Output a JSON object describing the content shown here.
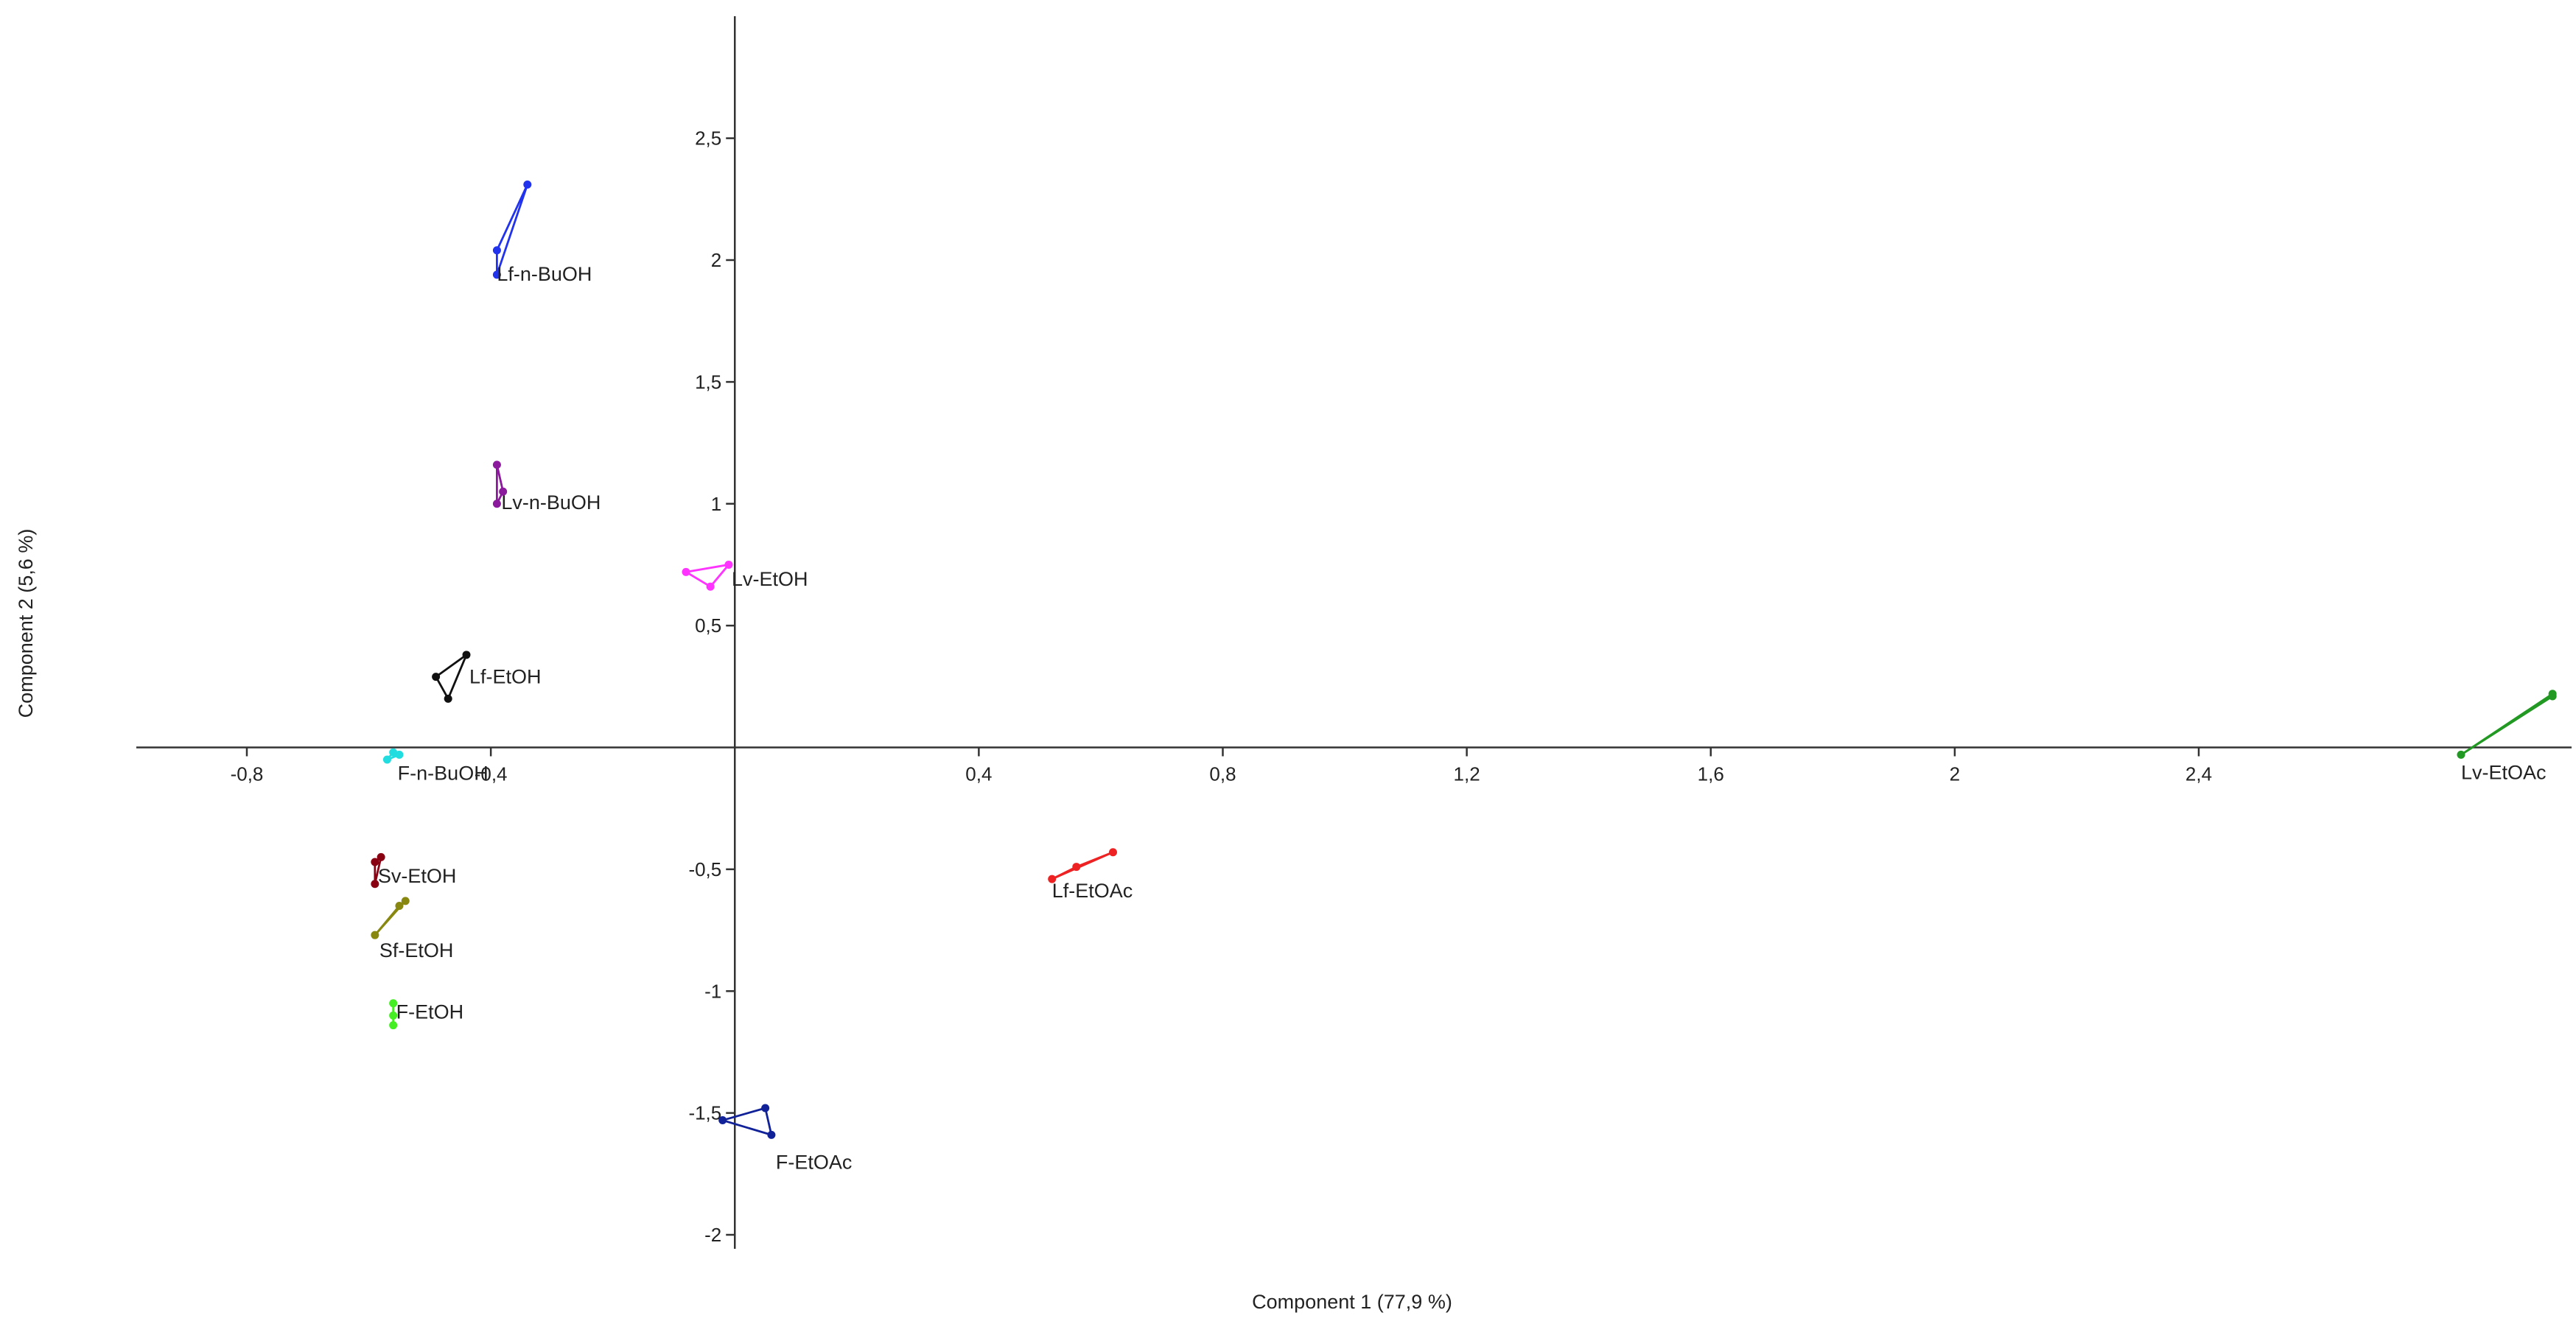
{
  "chart_data": {
    "type": "scatter",
    "title": "",
    "xlabel": "Component 1 (77,9 %)",
    "ylabel": "Component 2 (5,6 %)",
    "xlim": [
      -1.0,
      3.0
    ],
    "ylim": [
      -2.15,
      3.0
    ],
    "x_ticks": [
      {
        "value": -0.8,
        "label": "-0,8"
      },
      {
        "value": -0.4,
        "label": "-0,4"
      },
      {
        "value": 0.4,
        "label": "0,4"
      },
      {
        "value": 0.8,
        "label": "0,8"
      },
      {
        "value": 1.2,
        "label": "1,2"
      },
      {
        "value": 1.6,
        "label": "1,6"
      },
      {
        "value": 2.0,
        "label": "2"
      },
      {
        "value": 2.4,
        "label": "2,4"
      }
    ],
    "y_ticks": [
      {
        "value": 2.5,
        "label": "2,5"
      },
      {
        "value": 2.0,
        "label": "2"
      },
      {
        "value": 1.5,
        "label": "1,5"
      },
      {
        "value": 1.0,
        "label": "1"
      },
      {
        "value": 0.5,
        "label": "0,5"
      },
      {
        "value": -0.5,
        "label": "-0,5"
      },
      {
        "value": -1.0,
        "label": "-1"
      },
      {
        "value": -1.5,
        "label": "-1,5"
      },
      {
        "value": -2.0,
        "label": "-2"
      }
    ],
    "grid": false,
    "hull_outlines": true,
    "groups": [
      {
        "name": "Lf-n-BuOH",
        "color": "#2233ee",
        "points": [
          [
            -0.34,
            2.31
          ],
          [
            -0.39,
            2.04
          ],
          [
            -0.39,
            1.94
          ]
        ]
      },
      {
        "name": "Lv-n-BuOH",
        "color": "#8b1a9c",
        "points": [
          [
            -0.39,
            1.16
          ],
          [
            -0.38,
            1.05
          ],
          [
            -0.39,
            1.0
          ]
        ]
      },
      {
        "name": "Lv-EtOH",
        "color": "#ff33ff",
        "points": [
          [
            -0.08,
            0.72
          ],
          [
            -0.01,
            0.75
          ],
          [
            -0.04,
            0.66
          ]
        ]
      },
      {
        "name": "Lf-EtOH",
        "color": "#111111",
        "points": [
          [
            -0.44,
            0.38
          ],
          [
            -0.49,
            0.29
          ],
          [
            -0.47,
            0.2
          ]
        ]
      },
      {
        "name": "F-n-BuOH",
        "color": "#22dde0",
        "points": [
          [
            -0.56,
            -0.02
          ],
          [
            -0.57,
            -0.05
          ],
          [
            -0.55,
            -0.03
          ]
        ]
      },
      {
        "name": "Sv-EtOH",
        "color": "#880011",
        "points": [
          [
            -0.58,
            -0.45
          ],
          [
            -0.59,
            -0.47
          ],
          [
            -0.59,
            -0.56
          ]
        ]
      },
      {
        "name": "Sf-EtOH",
        "color": "#888811",
        "points": [
          [
            -0.54,
            -0.63
          ],
          [
            -0.55,
            -0.65
          ],
          [
            -0.59,
            -0.77
          ]
        ]
      },
      {
        "name": "F-EtOH",
        "color": "#44ee22",
        "points": [
          [
            -0.56,
            -1.05
          ],
          [
            -0.56,
            -1.1
          ],
          [
            -0.56,
            -1.14
          ]
        ]
      },
      {
        "name": "F-EtOAc",
        "color": "#112299",
        "points": [
          [
            -0.02,
            -1.53
          ],
          [
            0.05,
            -1.48
          ],
          [
            0.06,
            -1.59
          ]
        ]
      },
      {
        "name": "Lf-EtOAc",
        "color": "#ee2222",
        "points": [
          [
            0.52,
            -0.54
          ],
          [
            0.56,
            -0.49
          ],
          [
            0.62,
            -0.43
          ]
        ]
      },
      {
        "name": "Lv-EtOAc",
        "color": "#229922",
        "points": [
          [
            2.83,
            -0.03
          ],
          [
            2.98,
            0.22
          ],
          [
            2.98,
            0.21
          ]
        ]
      }
    ]
  }
}
